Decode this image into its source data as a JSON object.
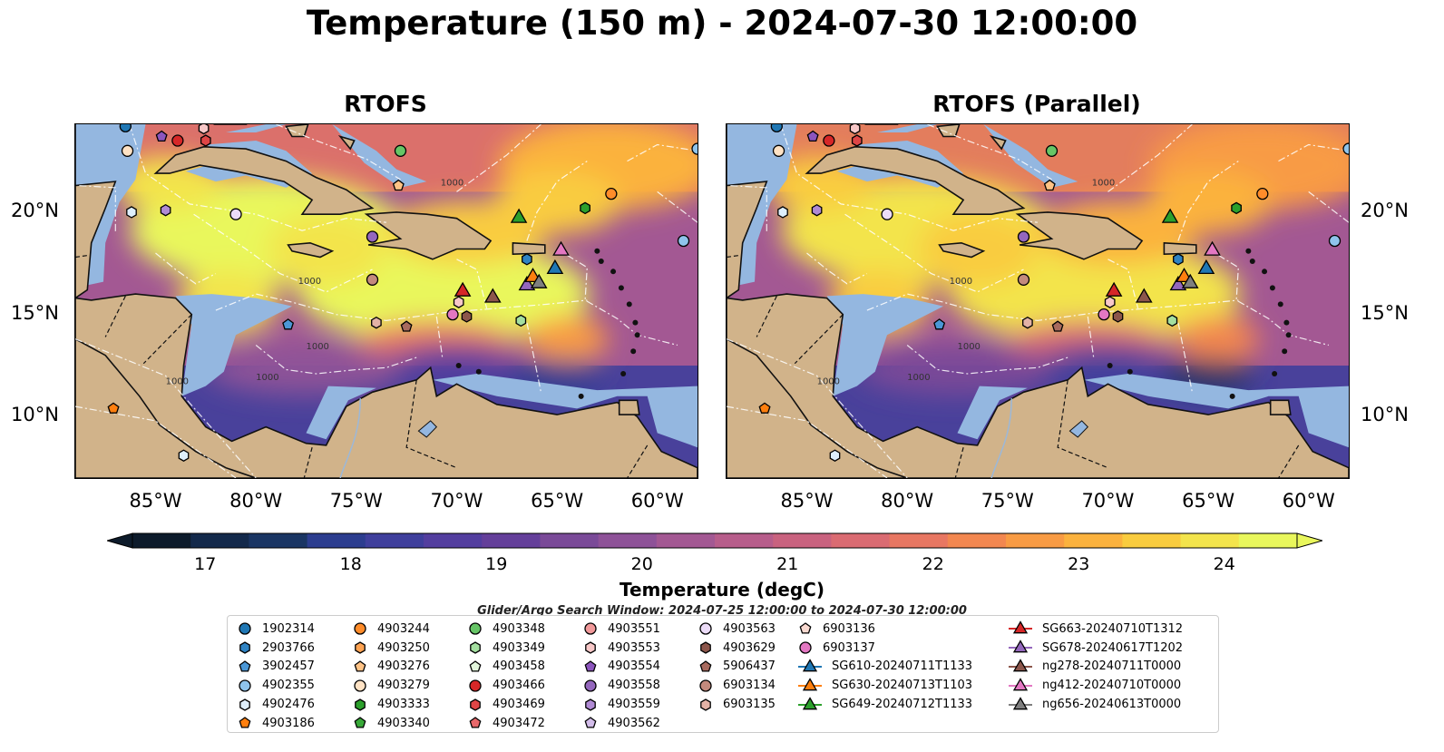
{
  "figure": {
    "title": "Temperature (150 m) - 2024-07-30 12:00:00",
    "panels": [
      {
        "title": "RTOFS"
      },
      {
        "title": "RTOFS (Parallel)"
      }
    ],
    "lon_ticks": [
      "85°W",
      "80°W",
      "75°W",
      "70°W",
      "65°W",
      "60°W"
    ],
    "lat_ticks": [
      "20°N",
      "15°N",
      "10°N"
    ],
    "extent": {
      "lon": [
        -89,
        -58
      ],
      "lat": [
        7,
        24.3
      ]
    },
    "colorbar": {
      "label": "Temperature (degC)",
      "ticks": [
        "17",
        "18",
        "19",
        "20",
        "21",
        "22",
        "23",
        "24"
      ],
      "range": [
        16.5,
        24.5
      ],
      "extend": "both",
      "colormap": "thermal",
      "colors": [
        "#0d1b2b",
        "#13294b",
        "#1a3563",
        "#2c3d8f",
        "#3f3f9c",
        "#533e9f",
        "#643f9a",
        "#7a4a98",
        "#8e5298",
        "#a35893",
        "#b75d8b",
        "#c9627f",
        "#da6b72",
        "#e87762",
        "#f28750",
        "#f89b44",
        "#fbb23e",
        "#f9cc3f",
        "#f3e44c",
        "#e9f75c"
      ]
    },
    "search_window": "Glider/Argo Search Window: 2024-07-25 12:00:00 to 2024-07-30 12:00:00",
    "land_color": "#d1b38a",
    "shelf_color": "#94b7e0"
  },
  "legend": {
    "columns": [
      [
        {
          "label": "1902314",
          "marker": "circle",
          "color": "#1f77b4"
        },
        {
          "label": "2903766",
          "marker": "hexagon",
          "color": "#2f83c3"
        },
        {
          "label": "3902457",
          "marker": "pentagon",
          "color": "#4b97d6"
        },
        {
          "label": "4902355",
          "marker": "circle",
          "color": "#8fc4ec"
        },
        {
          "label": "4902476",
          "marker": "hexagon",
          "color": "#deeffc"
        },
        {
          "label": "4903186",
          "marker": "pentagon",
          "color": "#ff7f0e"
        }
      ],
      [
        {
          "label": "4903244",
          "marker": "circle",
          "color": "#ff8c2a"
        },
        {
          "label": "4903250",
          "marker": "hexagon",
          "color": "#ffa352"
        },
        {
          "label": "4903276",
          "marker": "pentagon",
          "color": "#ffc386"
        },
        {
          "label": "4903279",
          "marker": "circle",
          "color": "#ffe2c4"
        },
        {
          "label": "4903333",
          "marker": "hexagon",
          "color": "#2ca02c"
        },
        {
          "label": "4903340",
          "marker": "pentagon",
          "color": "#38a938"
        }
      ],
      [
        {
          "label": "4903348",
          "marker": "circle",
          "color": "#66c566"
        },
        {
          "label": "4903349",
          "marker": "hexagon",
          "color": "#a4dfa0"
        },
        {
          "label": "4903458",
          "marker": "pentagon",
          "color": "#e3f6dc"
        },
        {
          "label": "4903466",
          "marker": "circle",
          "color": "#d62728"
        },
        {
          "label": "4903469",
          "marker": "hexagon",
          "color": "#df4546"
        },
        {
          "label": "4903472",
          "marker": "pentagon",
          "color": "#e8686a"
        }
      ],
      [
        {
          "label": "4903551",
          "marker": "circle",
          "color": "#f1999a"
        },
        {
          "label": "4903553",
          "marker": "hexagon",
          "color": "#f8c8c8"
        },
        {
          "label": "4903554",
          "marker": "pentagon",
          "color": "#8c55bd"
        },
        {
          "label": "4903558",
          "marker": "circle",
          "color": "#9467bd"
        },
        {
          "label": "4903559",
          "marker": "hexagon",
          "color": "#b08ad4"
        },
        {
          "label": "4903562",
          "marker": "pentagon",
          "color": "#d3bdea"
        }
      ],
      [
        {
          "label": "4903563",
          "marker": "circle",
          "color": "#ecdcf8"
        },
        {
          "label": "4903629",
          "marker": "hexagon",
          "color": "#8c564b"
        },
        {
          "label": "5906437",
          "marker": "pentagon",
          "color": "#a86a5e"
        },
        {
          "label": "6903134",
          "marker": "circle",
          "color": "#c48a7d"
        },
        {
          "label": "6903135",
          "marker": "hexagon",
          "color": "#e3b2a6"
        },
        {
          "label": "",
          "marker": "none",
          "color": "#ffffff"
        }
      ],
      [
        {
          "label": "6903136",
          "marker": "pentagon",
          "color": "#f9d9d0"
        },
        {
          "label": "6903137",
          "marker": "circle",
          "color": "#e377c2"
        },
        {
          "label": "SG610-20240711T1133",
          "marker": "triangle-line",
          "color": "#1f77b4"
        },
        {
          "label": "SG630-20240713T1103",
          "marker": "triangle-line",
          "color": "#ff7f0e"
        },
        {
          "label": "SG649-20240712T1133",
          "marker": "triangle-line",
          "color": "#2ca02c"
        },
        {
          "label": "",
          "marker": "none",
          "color": "#ffffff"
        }
      ],
      [
        {
          "label": "SG663-20240710T1312",
          "marker": "triangle-line",
          "color": "#d62728"
        },
        {
          "label": "SG678-20240617T1202",
          "marker": "triangle-line",
          "color": "#9467bd"
        },
        {
          "label": "ng278-20240711T0000",
          "marker": "triangle-line",
          "color": "#8c564b"
        },
        {
          "label": "ng412-20240710T0000",
          "marker": "triangle-line",
          "color": "#e377c2"
        },
        {
          "label": "ng656-20240613T0000",
          "marker": "triangle-line",
          "color": "#7f7f7f"
        },
        {
          "label": "",
          "marker": "none",
          "color": "#ffffff"
        }
      ]
    ]
  },
  "markers": [
    {
      "id": "1902314",
      "lon": -86.5,
      "lat": 24.2
    },
    {
      "id": "4903279",
      "lon": -86.4,
      "lat": 23.0
    },
    {
      "id": "4903554",
      "lon": -84.7,
      "lat": 23.7
    },
    {
      "id": "4903466",
      "lon": -83.9,
      "lat": 23.5
    },
    {
      "id": "4903553",
      "lon": -82.6,
      "lat": 24.1
    },
    {
      "id": "4903469",
      "lon": -82.5,
      "lat": 23.5
    },
    {
      "id": "4903348",
      "lon": -72.8,
      "lat": 23.0
    },
    {
      "id": "4903276",
      "lon": -72.9,
      "lat": 21.3
    },
    {
      "id": "4902476",
      "lon": -86.2,
      "lat": 20.0
    },
    {
      "id": "4903559",
      "lon": -84.5,
      "lat": 20.1
    },
    {
      "id": "4903563",
      "lon": -81.0,
      "lat": 19.9
    },
    {
      "id": "4903558",
      "lon": -74.2,
      "lat": 18.8
    },
    {
      "id": "4903244",
      "lon": -62.3,
      "lat": 20.9
    },
    {
      "id": "4903333",
      "lon": -63.6,
      "lat": 20.2
    },
    {
      "id": "4902355",
      "lon": -58.7,
      "lat": 18.6
    },
    {
      "id": "4902355b",
      "lon": -58.0,
      "lat": 23.1
    },
    {
      "id": "6903134",
      "lon": -74.2,
      "lat": 16.7
    },
    {
      "id": "4903550",
      "lon": -69.9,
      "lat": 15.6
    },
    {
      "id": "6903137",
      "lon": -70.2,
      "lat": 15.0
    },
    {
      "id": "4903629",
      "lon": -69.5,
      "lat": 14.9
    },
    {
      "id": "6903135",
      "lon": -74.0,
      "lat": 14.6
    },
    {
      "id": "5906437",
      "lon": -72.5,
      "lat": 14.4
    },
    {
      "id": "4903349",
      "lon": -66.8,
      "lat": 14.7
    },
    {
      "id": "3902457",
      "lon": -78.4,
      "lat": 14.5
    },
    {
      "id": "4903186",
      "lon": -87.1,
      "lat": 10.4
    },
    {
      "id": "4902476b",
      "lon": -83.6,
      "lat": 8.1
    },
    {
      "id": "SG663-20240710T1312",
      "lon": -69.7,
      "lat": 16.2
    },
    {
      "id": "ng278-20240711T0000",
      "lon": -68.2,
      "lat": 15.9
    },
    {
      "id": "SG678-20240617T1202",
      "lon": -66.5,
      "lat": 16.5
    },
    {
      "id": "SG630-20240713T1103",
      "lon": -66.2,
      "lat": 16.9
    },
    {
      "id": "ng656-20240613T0000",
      "lon": -65.9,
      "lat": 16.6
    },
    {
      "id": "SG610-20240711T1133",
      "lon": -65.1,
      "lat": 17.3
    },
    {
      "id": "ng412-20240710T0000",
      "lon": -64.8,
      "lat": 18.2
    },
    {
      "id": "SG649-20240712T1133",
      "lon": -66.9,
      "lat": 19.8
    },
    {
      "id": "2903766",
      "lon": -66.5,
      "lat": 17.7
    }
  ]
}
